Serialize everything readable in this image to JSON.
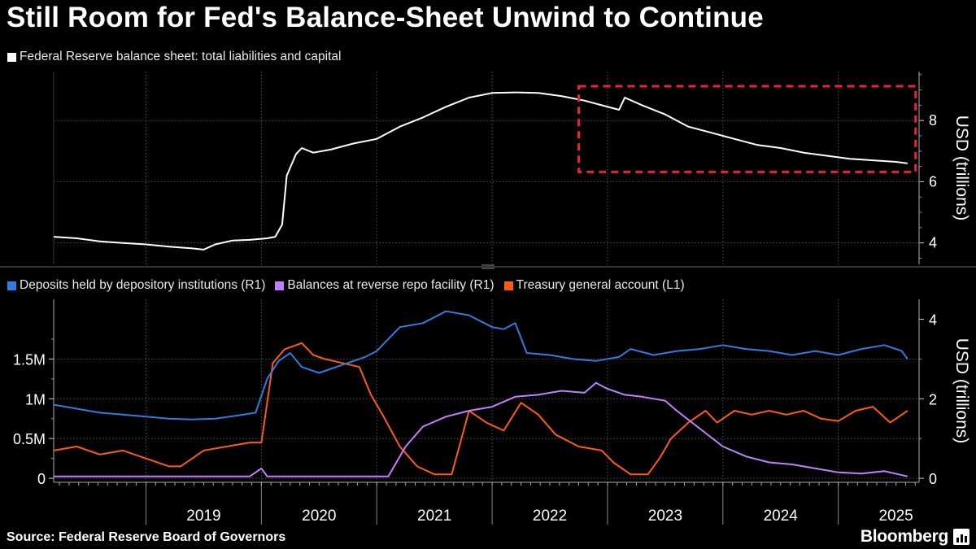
{
  "title": "Still Room for Fed's Balance-Sheet Unwind to Continue",
  "source": "Source: Federal Reserve Board of Governors",
  "brand": "Bloomberg",
  "colors": {
    "white": "#ffffff",
    "deposits": "#2f7de1",
    "reverse_repo": "#c080ff",
    "tga": "#ff5a14",
    "highlight": "#e8233c"
  },
  "chart_data": [
    {
      "type": "line",
      "title": "",
      "legend": [
        "Federal Reserve balance sheet: total liabilities and capital"
      ],
      "ylabel": "USD (trillions)",
      "y_axis_side": "right",
      "ylim": [
        3.3,
        9.6
      ],
      "yticks": [
        "4",
        "6",
        "8"
      ],
      "xlim": [
        2018.2,
        2025.7
      ],
      "highlight_box": {
        "x": [
          2022.75,
          2025.67
        ],
        "y": [
          6.32,
          9.12
        ],
        "style": "dashed"
      },
      "series": [
        {
          "name": "Federal Reserve balance sheet: total liabilities and capital",
          "x": [
            2018.2,
            2018.4,
            2018.6,
            2018.8,
            2019.0,
            2019.2,
            2019.4,
            2019.5,
            2019.6,
            2019.75,
            2019.9,
            2020.05,
            2020.12,
            2020.18,
            2020.22,
            2020.3,
            2020.35,
            2020.45,
            2020.6,
            2020.8,
            2021.0,
            2021.2,
            2021.4,
            2021.6,
            2021.8,
            2022.0,
            2022.2,
            2022.4,
            2022.6,
            2022.8,
            2022.95,
            2023.1,
            2023.15,
            2023.18,
            2023.3,
            2023.5,
            2023.7,
            2023.9,
            2024.1,
            2024.3,
            2024.5,
            2024.7,
            2024.9,
            2025.1,
            2025.3,
            2025.5,
            2025.6
          ],
          "values": [
            4.2,
            4.15,
            4.05,
            4.0,
            3.95,
            3.88,
            3.82,
            3.78,
            3.95,
            4.08,
            4.1,
            4.15,
            4.2,
            4.6,
            6.2,
            6.9,
            7.1,
            6.95,
            7.05,
            7.25,
            7.4,
            7.8,
            8.1,
            8.45,
            8.75,
            8.9,
            8.92,
            8.9,
            8.8,
            8.65,
            8.5,
            8.35,
            8.75,
            8.7,
            8.5,
            8.2,
            7.8,
            7.6,
            7.4,
            7.2,
            7.1,
            6.95,
            6.85,
            6.75,
            6.7,
            6.65,
            6.6
          ]
        }
      ]
    },
    {
      "type": "line",
      "title": "",
      "legend": [
        "Deposits held by depository institutions (R1)",
        "Balances at reverse repo facility (R1)",
        "Treasury general account  (L1)"
      ],
      "ylabel": "USD (trillions)",
      "yticks_left": [
        "0",
        "0.5M",
        "1M",
        "1.5M"
      ],
      "ylim_left": [
        -0.05,
        2.25
      ],
      "yticks_right": [
        "0",
        "2",
        "4"
      ],
      "ylim_right": [
        -0.1,
        4.5
      ],
      "xlim": [
        2018.2,
        2025.7
      ],
      "xticks": [
        "2019",
        "2020",
        "2021",
        "2022",
        "2023",
        "2024",
        "2025"
      ],
      "series": [
        {
          "name": "Deposits held by depository institutions (R1)",
          "axis": "right",
          "x": [
            2018.2,
            2018.4,
            2018.6,
            2018.8,
            2019.0,
            2019.2,
            2019.4,
            2019.6,
            2019.8,
            2019.95,
            2020.05,
            2020.15,
            2020.25,
            2020.35,
            2020.5,
            2020.7,
            2020.9,
            2021.0,
            2021.2,
            2021.4,
            2021.6,
            2021.8,
            2022.0,
            2022.1,
            2022.2,
            2022.3,
            2022.5,
            2022.7,
            2022.9,
            2023.1,
            2023.2,
            2023.4,
            2023.6,
            2023.8,
            2024.0,
            2024.2,
            2024.4,
            2024.6,
            2024.8,
            2025.0,
            2025.2,
            2025.4,
            2025.55,
            2025.6
          ],
          "values": [
            1.85,
            1.75,
            1.65,
            1.6,
            1.55,
            1.5,
            1.48,
            1.5,
            1.58,
            1.65,
            2.5,
            2.95,
            3.15,
            2.8,
            2.65,
            2.85,
            3.05,
            3.2,
            3.8,
            3.9,
            4.2,
            4.1,
            3.8,
            3.75,
            3.9,
            3.15,
            3.1,
            3.0,
            2.95,
            3.05,
            3.25,
            3.1,
            3.2,
            3.25,
            3.35,
            3.25,
            3.2,
            3.1,
            3.2,
            3.1,
            3.25,
            3.35,
            3.2,
            3.0
          ]
        },
        {
          "name": "Balances at reverse repo facility (R1)",
          "axis": "right",
          "x": [
            2018.2,
            2019.0,
            2019.5,
            2019.9,
            2020.0,
            2020.05,
            2020.5,
            2020.9,
            2021.1,
            2021.25,
            2021.4,
            2021.6,
            2021.8,
            2022.0,
            2022.2,
            2022.4,
            2022.6,
            2022.8,
            2022.9,
            2023.0,
            2023.15,
            2023.3,
            2023.5,
            2023.6,
            2023.8,
            2024.0,
            2024.2,
            2024.4,
            2024.6,
            2024.8,
            2025.0,
            2025.2,
            2025.4,
            2025.6
          ],
          "values": [
            0.05,
            0.05,
            0.05,
            0.05,
            0.25,
            0.05,
            0.05,
            0.05,
            0.05,
            0.8,
            1.3,
            1.55,
            1.7,
            1.8,
            2.05,
            2.1,
            2.2,
            2.15,
            2.4,
            2.25,
            2.1,
            2.05,
            1.95,
            1.7,
            1.25,
            0.8,
            0.55,
            0.4,
            0.35,
            0.25,
            0.15,
            0.12,
            0.18,
            0.05
          ]
        },
        {
          "name": "Treasury general account  (L1)",
          "axis": "left",
          "x": [
            2018.2,
            2018.4,
            2018.6,
            2018.8,
            2019.0,
            2019.2,
            2019.3,
            2019.5,
            2019.7,
            2019.9,
            2020.0,
            2020.1,
            2020.2,
            2020.35,
            2020.45,
            2020.55,
            2020.7,
            2020.85,
            2020.95,
            2021.05,
            2021.2,
            2021.35,
            2021.5,
            2021.65,
            2021.8,
            2021.95,
            2022.1,
            2022.25,
            2022.4,
            2022.55,
            2022.75,
            2022.95,
            2023.05,
            2023.2,
            2023.35,
            2023.45,
            2023.55,
            2023.7,
            2023.85,
            2023.95,
            2024.1,
            2024.25,
            2024.4,
            2024.55,
            2024.7,
            2024.85,
            2025.0,
            2025.15,
            2025.3,
            2025.45,
            2025.6
          ],
          "values": [
            0.35,
            0.4,
            0.3,
            0.35,
            0.25,
            0.15,
            0.15,
            0.35,
            0.4,
            0.45,
            0.45,
            1.45,
            1.62,
            1.7,
            1.55,
            1.5,
            1.45,
            1.4,
            1.05,
            0.8,
            0.4,
            0.15,
            0.05,
            0.05,
            0.85,
            0.7,
            0.6,
            0.95,
            0.8,
            0.55,
            0.4,
            0.35,
            0.2,
            0.05,
            0.05,
            0.25,
            0.5,
            0.7,
            0.85,
            0.7,
            0.85,
            0.8,
            0.85,
            0.8,
            0.85,
            0.75,
            0.72,
            0.85,
            0.9,
            0.7,
            0.85
          ]
        }
      ]
    }
  ]
}
